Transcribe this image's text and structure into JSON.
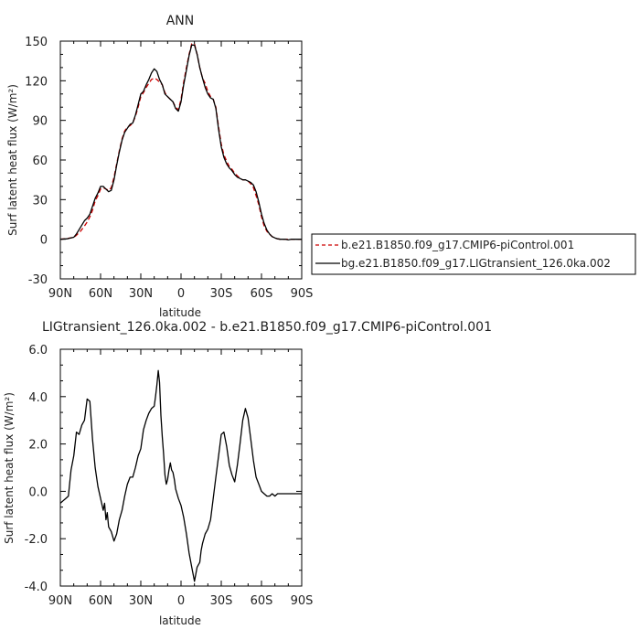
{
  "chart_data": [
    {
      "type": "line",
      "title": "ANN",
      "xlabel": "latitude",
      "ylabel": "Surf latent heat flux (W/m²)",
      "xlim": [
        90,
        -90
      ],
      "ylim": [
        -30,
        150
      ],
      "xticks": [
        90,
        60,
        30,
        0,
        -30,
        -60,
        -90
      ],
      "xtick_labels": [
        "90N",
        "60N",
        "30N",
        "0",
        "30S",
        "60S",
        "90S"
      ],
      "yticks": [
        -30,
        0,
        30,
        60,
        90,
        120,
        150
      ],
      "ytick_labels": [
        "-30",
        "0",
        "30",
        "60",
        "90",
        "120",
        "150"
      ],
      "legend_position": "right",
      "series": [
        {
          "name": "b.e21.B1850.f09_g17.CMIP6-piControl.001",
          "color": "#cc0000",
          "style": "dashed",
          "x": [
            90,
            85,
            80,
            78,
            75,
            72,
            70,
            68,
            66,
            64,
            62,
            60,
            58,
            56,
            54,
            52,
            50,
            48,
            46,
            44,
            42,
            40,
            38,
            36,
            34,
            32,
            30,
            28,
            26,
            24,
            22,
            20,
            18,
            16,
            14,
            12,
            10,
            8,
            6,
            4,
            2,
            0,
            -2,
            -4,
            -6,
            -8,
            -10,
            -12,
            -14,
            -16,
            -18,
            -20,
            -22,
            -24,
            -26,
            -28,
            -30,
            -32,
            -34,
            -36,
            -38,
            -40,
            -42,
            -44,
            -46,
            -48,
            -50,
            -52,
            -54,
            -56,
            -58,
            -60,
            -62,
            -64,
            -66,
            -68,
            -70,
            -72,
            -74,
            -76,
            -78,
            -80,
            -82,
            -85,
            -88,
            -90
          ],
          "values": [
            0,
            0.5,
            1.5,
            3,
            6,
            10,
            13,
            17,
            22,
            29,
            33,
            38,
            39,
            38,
            37,
            39,
            47,
            57,
            67,
            76,
            82,
            85,
            86,
            88,
            93,
            100,
            108,
            111,
            115,
            118,
            121,
            122,
            121,
            119,
            117,
            111,
            108,
            106,
            104,
            100,
            98,
            106,
            119,
            130,
            140,
            148,
            148,
            140,
            130,
            122,
            118,
            112,
            108,
            106,
            100,
            85,
            72,
            64,
            59,
            55,
            53,
            50,
            48,
            46,
            45,
            45,
            44,
            42,
            39,
            33,
            26,
            17,
            10,
            6,
            4,
            2,
            1,
            0.3,
            0,
            0,
            0,
            0,
            0,
            0,
            0,
            0
          ]
        },
        {
          "name": "bg.e21.B1850.f09_g17.LIGtransient_126.0ka.002",
          "color": "#000000",
          "style": "solid",
          "x": [
            90,
            85,
            80,
            78,
            75,
            72,
            70,
            68,
            66,
            64,
            62,
            60,
            58,
            56,
            54,
            52,
            50,
            48,
            46,
            44,
            42,
            40,
            38,
            36,
            34,
            32,
            30,
            28,
            26,
            24,
            22,
            20,
            18,
            16,
            14,
            12,
            10,
            8,
            6,
            4,
            2,
            0,
            -2,
            -4,
            -6,
            -8,
            -10,
            -12,
            -14,
            -16,
            -18,
            -20,
            -22,
            -24,
            -26,
            -28,
            -30,
            -32,
            -34,
            -36,
            -38,
            -40,
            -42,
            -44,
            -46,
            -48,
            -50,
            -52,
            -54,
            -56,
            -58,
            -60,
            -62,
            -64,
            -66,
            -68,
            -70,
            -72,
            -74,
            -76,
            -78,
            -80,
            -82,
            -85,
            -88,
            -90
          ],
          "values": [
            0,
            0.3,
            1.5,
            4,
            9,
            14,
            16,
            19,
            25,
            31,
            35,
            40,
            40,
            38,
            36,
            37,
            45,
            56,
            66,
            75,
            81,
            84,
            87,
            88,
            94,
            102,
            110,
            112,
            117,
            121,
            126,
            129,
            127,
            121,
            117,
            110,
            108,
            106,
            104,
            99,
            97,
            104,
            117,
            128,
            139,
            147,
            147,
            140,
            130,
            122,
            115,
            110,
            107,
            106,
            99,
            83,
            70,
            62,
            57,
            54,
            52,
            49,
            47,
            46,
            45,
            45,
            44,
            43,
            41,
            36,
            28,
            19,
            12,
            7,
            4,
            2,
            1,
            0.3,
            0,
            0,
            0,
            -0.5,
            0,
            0,
            0,
            0
          ]
        }
      ]
    },
    {
      "type": "line",
      "title": "LIGtransient_126.0ka.002 - b.e21.B1850.f09_g17.CMIP6-piControl.001",
      "xlabel": "latitude",
      "ylabel": "Surf latent heat flux (W/m²)",
      "xlim": [
        90,
        -90
      ],
      "ylim": [
        -4,
        6
      ],
      "xticks": [
        90,
        60,
        30,
        0,
        -30,
        -60,
        -90
      ],
      "xtick_labels": [
        "90N",
        "60N",
        "30N",
        "0",
        "30S",
        "60S",
        "90S"
      ],
      "yticks": [
        -4,
        -2,
        0,
        2,
        4,
        6
      ],
      "ytick_labels": [
        "-4.0",
        "-2.0",
        "0.0",
        "2.0",
        "4.0",
        "6.0"
      ],
      "series": [
        {
          "color": "#000000",
          "style": "solid",
          "x": [
            90,
            88,
            86,
            84,
            82,
            80,
            78,
            76,
            74,
            72,
            70,
            68,
            66,
            64,
            62,
            60,
            58,
            57,
            56,
            55,
            54,
            52,
            50,
            48,
            46,
            44,
            42,
            40,
            38,
            36,
            34,
            32,
            30,
            28,
            26,
            24,
            22,
            20,
            19,
            18,
            17,
            16,
            15,
            14,
            13,
            12,
            11,
            10,
            9,
            8,
            7,
            6,
            5,
            4,
            2,
            0,
            -2,
            -4,
            -6,
            -8,
            -10,
            -12,
            -14,
            -15,
            -16,
            -18,
            -20,
            -22,
            -24,
            -26,
            -28,
            -30,
            -32,
            -34,
            -36,
            -38,
            -40,
            -42,
            -44,
            -46,
            -48,
            -50,
            -52,
            -54,
            -56,
            -58,
            -60,
            -62,
            -64,
            -66,
            -68,
            -70,
            -72,
            -74,
            -76,
            -78,
            -80,
            -82,
            -84,
            -86,
            -88,
            -90
          ],
          "values": [
            -0.5,
            -0.4,
            -0.3,
            -0.2,
            0.9,
            1.5,
            2.5,
            2.4,
            2.8,
            3.0,
            3.9,
            3.8,
            2.2,
            1.0,
            0.2,
            -0.3,
            -0.8,
            -0.5,
            -1.2,
            -0.9,
            -1.5,
            -1.7,
            -2.1,
            -1.8,
            -1.2,
            -0.8,
            -0.2,
            0.3,
            0.6,
            0.6,
            1.0,
            1.5,
            1.8,
            2.6,
            3.0,
            3.3,
            3.5,
            3.6,
            4.0,
            4.5,
            5.1,
            4.6,
            3.2,
            2.3,
            1.6,
            0.7,
            0.3,
            0.5,
            0.9,
            1.2,
            0.9,
            0.8,
            0.5,
            0.1,
            -0.3,
            -0.6,
            -1.1,
            -1.8,
            -2.6,
            -3.2,
            -3.8,
            -3.2,
            -3.0,
            -2.5,
            -2.2,
            -1.8,
            -1.6,
            -1.2,
            -0.3,
            0.6,
            1.5,
            2.4,
            2.5,
            1.9,
            1.1,
            0.7,
            0.4,
            1.1,
            2.0,
            3.0,
            3.5,
            3.1,
            2.2,
            1.3,
            0.6,
            0.3,
            0.0,
            -0.1,
            -0.2,
            -0.2,
            -0.1,
            -0.2,
            -0.1,
            -0.1,
            -0.1,
            -0.1,
            -0.1,
            -0.1,
            -0.1,
            -0.1,
            -0.1,
            -0.1
          ]
        }
      ]
    }
  ]
}
